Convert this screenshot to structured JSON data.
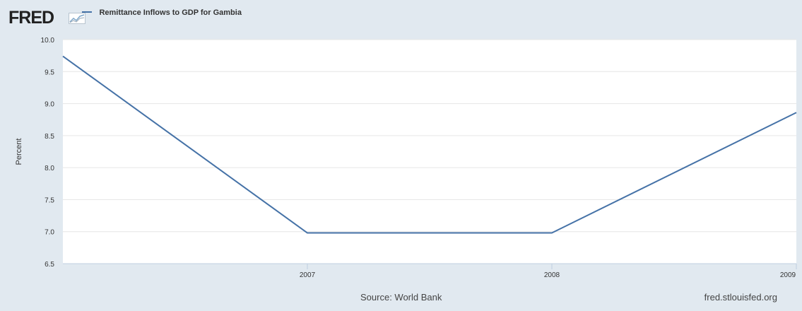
{
  "header": {
    "logo_text": "FRED",
    "legend_label": "Remittance Inflows to GDP for Gambia"
  },
  "colors": {
    "background": "#e1e9f0",
    "plot_bg": "#ffffff",
    "series": "#4572a7",
    "grid": "#e6e6e6"
  },
  "chart_data": {
    "type": "line",
    "title": "",
    "xlabel": "",
    "ylabel": "Percent",
    "x": [
      2006,
      2007,
      2008,
      2009
    ],
    "x_tick_labels": [
      "2007",
      "2008",
      "2009"
    ],
    "x_tick_values": [
      2007,
      2008,
      2009
    ],
    "y_ticks": [
      "6.5",
      "7.0",
      "7.5",
      "8.0",
      "8.5",
      "9.0",
      "9.5",
      "10.0"
    ],
    "ylim": [
      6.5,
      10.0
    ],
    "xlim": [
      2006,
      2009
    ],
    "grid": true,
    "legend_position": "top-left",
    "series": [
      {
        "name": "Remittance Inflows to GDP for Gambia",
        "values": [
          9.74,
          6.98,
          6.98,
          8.86
        ]
      }
    ]
  },
  "footer": {
    "source": "Source: World Bank",
    "url": "fred.stlouisfed.org"
  }
}
